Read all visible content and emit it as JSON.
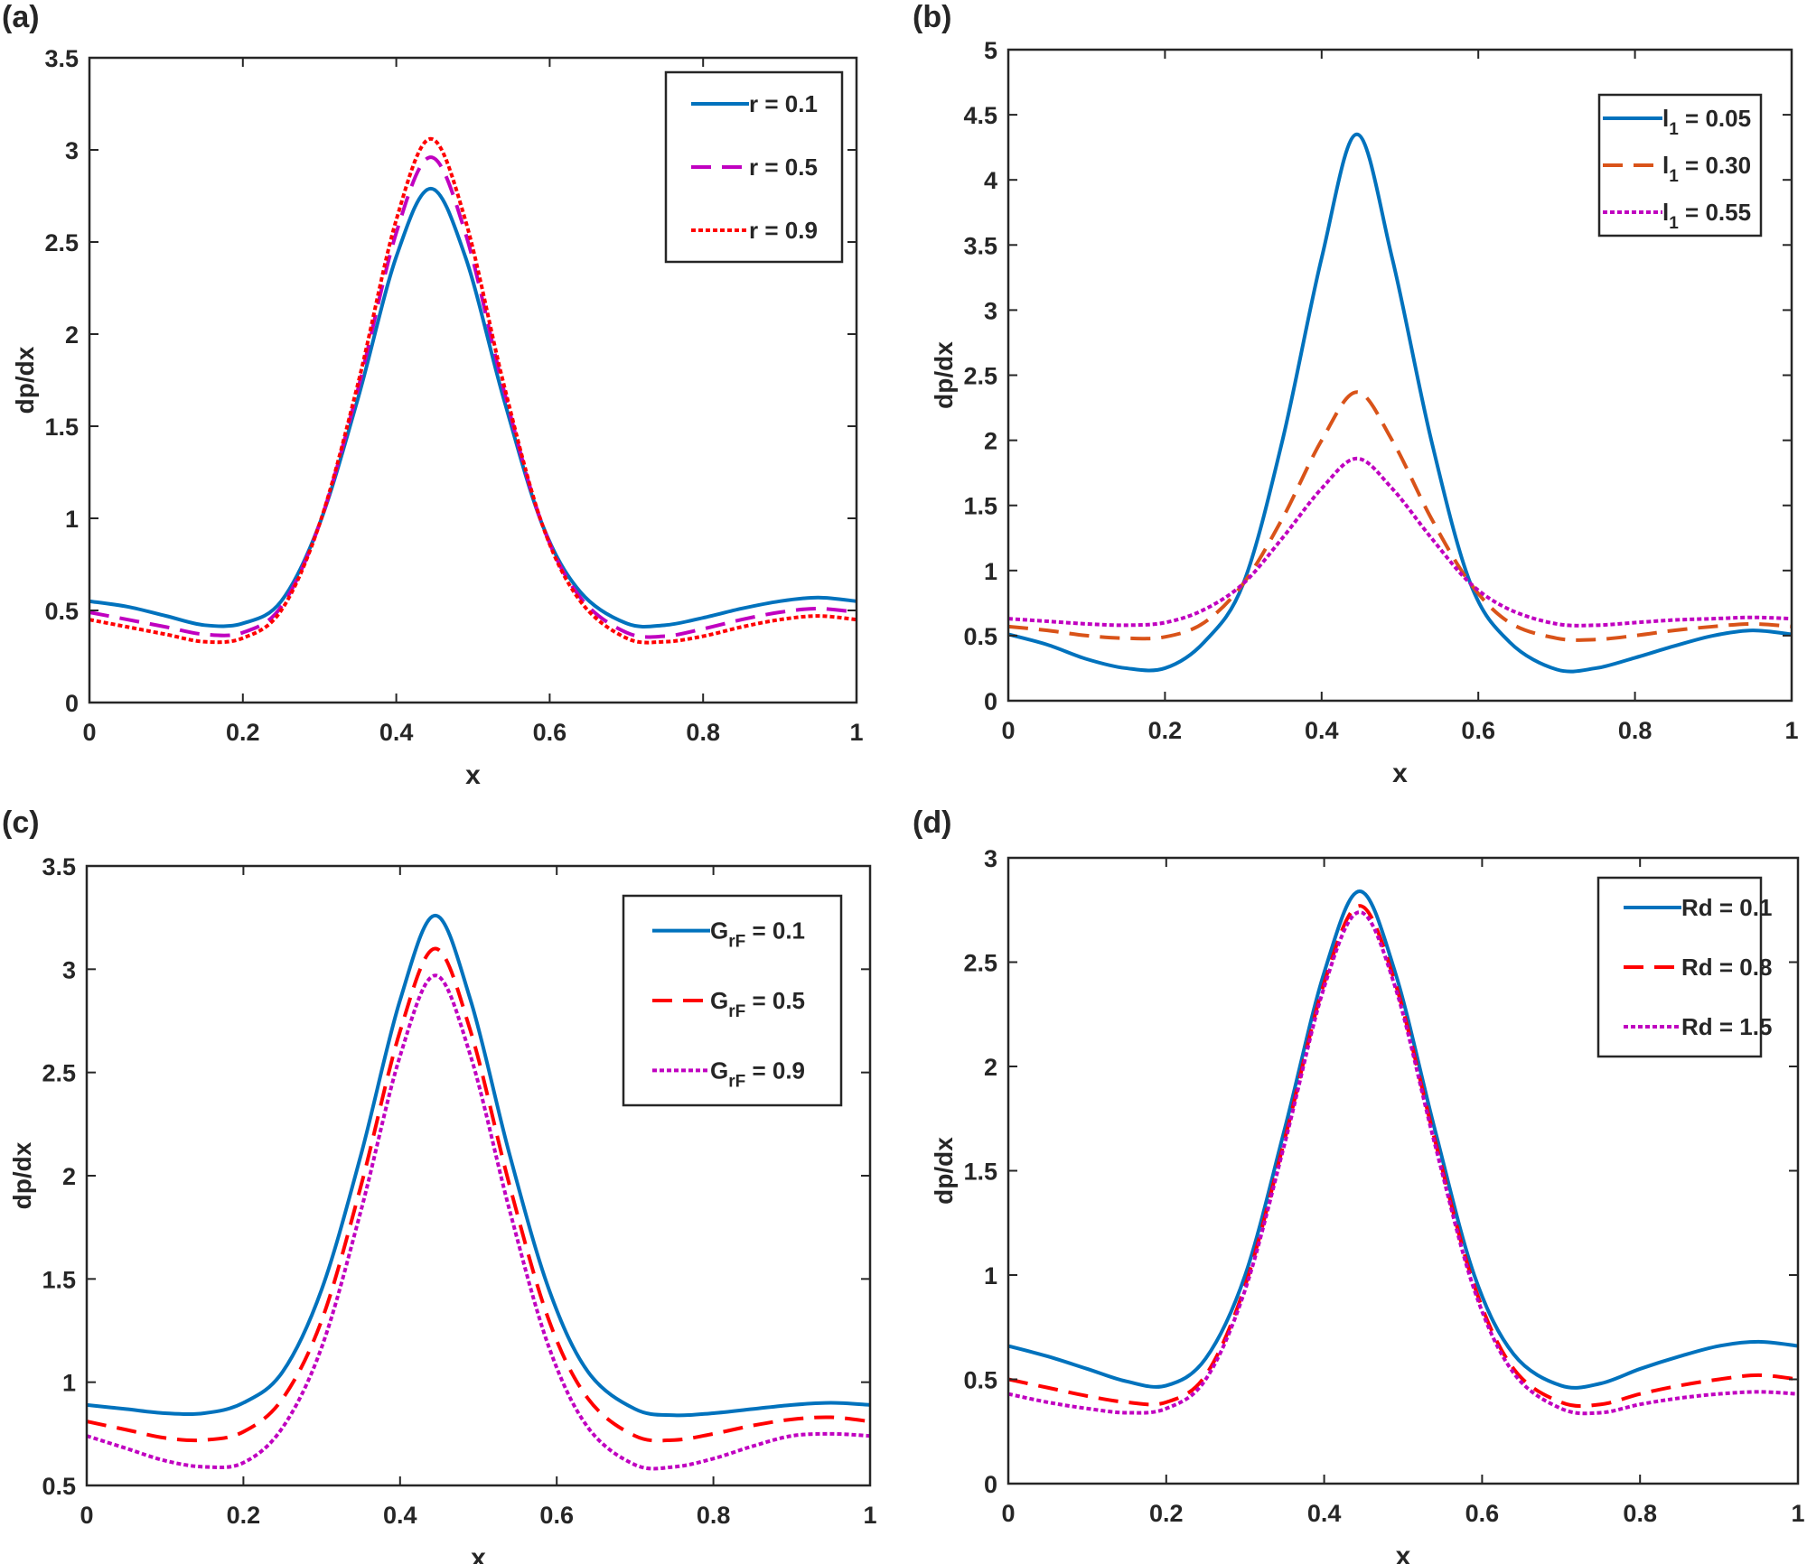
{
  "chart_data": [
    {
      "panel": "(a)",
      "type": "line",
      "xlabel": "x",
      "ylabel": "dp/dx",
      "xlim": [
        0,
        1
      ],
      "ylim": [
        0,
        3.5
      ],
      "xticks": [
        0,
        0.2,
        0.4,
        0.6,
        0.8,
        1
      ],
      "yticks": [
        0,
        0.5,
        1,
        1.5,
        2,
        2.5,
        3,
        3.5
      ],
      "legend_position": "top-right",
      "x": [
        0,
        0.05,
        0.1,
        0.15,
        0.2,
        0.25,
        0.3,
        0.35,
        0.4,
        0.445,
        0.49,
        0.54,
        0.59,
        0.64,
        0.7,
        0.75,
        0.8,
        0.85,
        0.9,
        0.95,
        1
      ],
      "series": [
        {
          "name": {
            "base": "r",
            "sub": "",
            "rest": " = 0.1"
          },
          "color": "#0072BD",
          "style": "solid",
          "values": [
            0.55,
            0.52,
            0.47,
            0.42,
            0.43,
            0.55,
            0.97,
            1.65,
            2.42,
            2.79,
            2.42,
            1.65,
            0.97,
            0.6,
            0.43,
            0.42,
            0.46,
            0.51,
            0.55,
            0.57,
            0.55
          ]
        },
        {
          "name": {
            "base": "r",
            "sub": "",
            "rest": " = 0.5"
          },
          "color": "#C000C0",
          "style": "dashed",
          "values": [
            0.49,
            0.45,
            0.41,
            0.37,
            0.38,
            0.52,
            0.97,
            1.7,
            2.55,
            2.96,
            2.55,
            1.7,
            0.97,
            0.57,
            0.38,
            0.36,
            0.4,
            0.45,
            0.49,
            0.51,
            0.49
          ]
        },
        {
          "name": {
            "base": "r",
            "sub": "",
            "rest": " = 0.9"
          },
          "color": "#FF0000",
          "style": "dotted",
          "values": [
            0.45,
            0.41,
            0.37,
            0.33,
            0.35,
            0.5,
            0.97,
            1.73,
            2.62,
            3.06,
            2.62,
            1.73,
            0.97,
            0.55,
            0.35,
            0.33,
            0.36,
            0.41,
            0.45,
            0.47,
            0.45
          ]
        }
      ]
    },
    {
      "panel": "(b)",
      "type": "line",
      "xlabel": "x",
      "ylabel": "dp/dx",
      "xlim": [
        0,
        1
      ],
      "ylim": [
        0,
        5
      ],
      "xticks": [
        0,
        0.2,
        0.4,
        0.6,
        0.8,
        1
      ],
      "yticks": [
        0,
        0.5,
        1,
        1.5,
        2,
        2.5,
        3,
        3.5,
        4,
        4.5,
        5
      ],
      "legend_position": "top-right",
      "x": [
        0,
        0.05,
        0.1,
        0.15,
        0.2,
        0.25,
        0.3,
        0.35,
        0.4,
        0.445,
        0.49,
        0.54,
        0.59,
        0.64,
        0.7,
        0.75,
        0.8,
        0.85,
        0.9,
        0.95,
        1
      ],
      "series": [
        {
          "name": {
            "base": "l",
            "sub": "1",
            "rest": " = 0.05"
          },
          "color": "#0072BD",
          "style": "solid",
          "values": [
            0.51,
            0.43,
            0.32,
            0.25,
            0.25,
            0.45,
            0.9,
            2.0,
            3.4,
            4.35,
            3.4,
            2.0,
            0.9,
            0.45,
            0.24,
            0.25,
            0.33,
            0.42,
            0.5,
            0.54,
            0.51
          ]
        },
        {
          "name": {
            "base": "l",
            "sub": "1",
            "rest": " = 0.30"
          },
          "color": "#D95319",
          "style": "dashed",
          "values": [
            0.57,
            0.54,
            0.5,
            0.48,
            0.49,
            0.6,
            0.9,
            1.4,
            2.0,
            2.37,
            2.0,
            1.4,
            0.9,
            0.6,
            0.48,
            0.47,
            0.5,
            0.54,
            0.57,
            0.59,
            0.57
          ]
        },
        {
          "name": {
            "base": "l",
            "sub": "1",
            "rest": " = 0.55"
          },
          "color": "#C000C0",
          "style": "dotted",
          "values": [
            0.63,
            0.61,
            0.59,
            0.58,
            0.6,
            0.7,
            0.9,
            1.25,
            1.63,
            1.86,
            1.63,
            1.25,
            0.9,
            0.7,
            0.59,
            0.58,
            0.6,
            0.62,
            0.63,
            0.64,
            0.63
          ]
        }
      ]
    },
    {
      "panel": "(c)",
      "type": "line",
      "xlabel": "x",
      "ylabel": "dp/dx",
      "xlim": [
        0,
        1
      ],
      "ylim": [
        0.5,
        3.5
      ],
      "xticks": [
        0,
        0.2,
        0.4,
        0.6,
        0.8,
        1
      ],
      "yticks": [
        0.5,
        1,
        1.5,
        2,
        2.5,
        3,
        3.5
      ],
      "legend_position": "top-right",
      "x": [
        0,
        0.05,
        0.1,
        0.15,
        0.2,
        0.25,
        0.3,
        0.35,
        0.4,
        0.445,
        0.49,
        0.54,
        0.59,
        0.64,
        0.7,
        0.75,
        0.8,
        0.85,
        0.9,
        0.95,
        1
      ],
      "series": [
        {
          "name": {
            "base": "G",
            "sub": "rF",
            "rest": " = 0.1"
          },
          "color": "#0072BD",
          "style": "solid",
          "values": [
            0.89,
            0.87,
            0.85,
            0.85,
            0.9,
            1.05,
            1.45,
            2.1,
            2.85,
            3.26,
            2.85,
            2.1,
            1.45,
            1.05,
            0.87,
            0.84,
            0.85,
            0.87,
            0.89,
            0.9,
            0.89
          ]
        },
        {
          "name": {
            "base": "G",
            "sub": "rF",
            "rest": " = 0.5"
          },
          "color": "#FF0000",
          "style": "dashed",
          "values": [
            0.81,
            0.77,
            0.73,
            0.72,
            0.76,
            0.92,
            1.3,
            1.95,
            2.7,
            3.1,
            2.7,
            1.95,
            1.3,
            0.92,
            0.74,
            0.72,
            0.75,
            0.79,
            0.82,
            0.83,
            0.81
          ]
        },
        {
          "name": {
            "base": "G",
            "sub": "rF",
            "rest": " = 0.9"
          },
          "color": "#C000C0",
          "style": "dotted",
          "values": [
            0.74,
            0.68,
            0.62,
            0.59,
            0.61,
            0.78,
            1.17,
            1.83,
            2.58,
            2.97,
            2.58,
            1.83,
            1.17,
            0.78,
            0.6,
            0.59,
            0.63,
            0.69,
            0.74,
            0.75,
            0.74
          ]
        }
      ]
    },
    {
      "panel": "(d)",
      "type": "line",
      "xlabel": "x",
      "ylabel": "dp/dx",
      "xlim": [
        0,
        1
      ],
      "ylim": [
        0,
        3
      ],
      "xticks": [
        0,
        0.2,
        0.4,
        0.6,
        0.8,
        1
      ],
      "yticks": [
        0,
        0.5,
        1,
        1.5,
        2,
        2.5,
        3
      ],
      "legend_position": "top-right",
      "x": [
        0,
        0.05,
        0.1,
        0.15,
        0.2,
        0.25,
        0.3,
        0.35,
        0.4,
        0.445,
        0.49,
        0.54,
        0.59,
        0.64,
        0.7,
        0.75,
        0.8,
        0.85,
        0.9,
        0.95,
        1
      ],
      "series": [
        {
          "name": {
            "base": "Rd",
            "sub": "",
            "rest": " = 0.1"
          },
          "color": "#0072BD",
          "style": "solid",
          "values": [
            0.66,
            0.61,
            0.55,
            0.49,
            0.47,
            0.6,
            1.0,
            1.7,
            2.45,
            2.84,
            2.45,
            1.7,
            1.0,
            0.62,
            0.47,
            0.48,
            0.55,
            0.61,
            0.66,
            0.68,
            0.66
          ]
        },
        {
          "name": {
            "base": "Rd",
            "sub": "",
            "rest": " = 0.8"
          },
          "color": "#FF0000",
          "style": "dashed",
          "values": [
            0.5,
            0.46,
            0.42,
            0.39,
            0.39,
            0.52,
            0.95,
            1.65,
            2.4,
            2.77,
            2.4,
            1.65,
            0.95,
            0.55,
            0.39,
            0.38,
            0.43,
            0.47,
            0.5,
            0.52,
            0.5
          ]
        },
        {
          "name": {
            "base": "Rd",
            "sub": "",
            "rest": " = 1.5"
          },
          "color": "#C000C0",
          "style": "dotted",
          "values": [
            0.43,
            0.39,
            0.36,
            0.34,
            0.36,
            0.5,
            0.93,
            1.63,
            2.38,
            2.74,
            2.38,
            1.63,
            0.93,
            0.53,
            0.36,
            0.34,
            0.38,
            0.41,
            0.43,
            0.44,
            0.43
          ]
        }
      ]
    }
  ]
}
